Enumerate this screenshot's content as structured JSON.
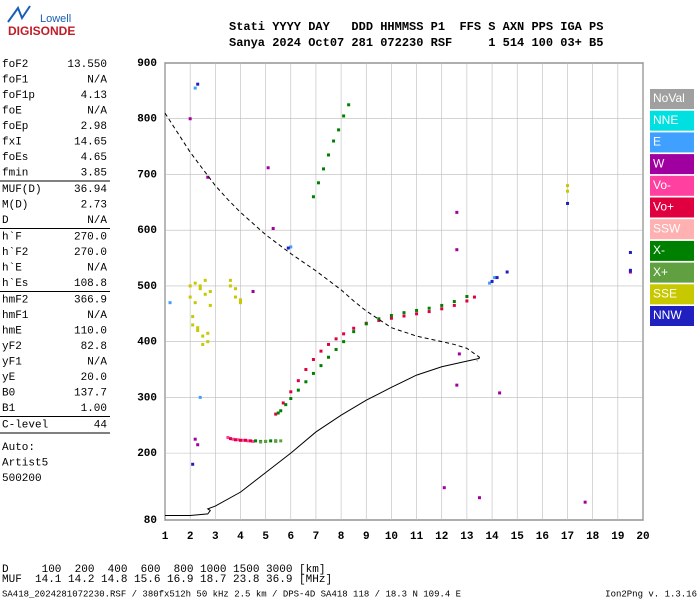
{
  "logo": {
    "brand": "Lowell",
    "product": "DIGISONDE"
  },
  "header": {
    "labels": "Stati YYYY DAY   DDD HHMMSS P1  FFS S AXN PPS IGA PS",
    "values": "Sanya 2024 Oct07 281 072230 RSF     1 514 100 03+ B5"
  },
  "params": [
    [
      [
        "foF2",
        "13.550"
      ],
      [
        "foF1",
        "N/A"
      ],
      [
        "foF1p",
        "4.13"
      ],
      [
        "foE",
        "N/A"
      ],
      [
        "foEp",
        "2.98"
      ],
      [
        "fxI",
        "14.65"
      ],
      [
        "foEs",
        "4.65"
      ],
      [
        "fmin",
        "3.85"
      ]
    ],
    [
      [
        "MUF(D)",
        "36.94"
      ],
      [
        "M(D)",
        "2.73"
      ],
      [
        "D",
        "N/A"
      ]
    ],
    [
      [
        "h`F",
        "270.0"
      ],
      [
        "h`F2",
        "270.0"
      ],
      [
        "h`E",
        "N/A"
      ],
      [
        "h`Es",
        "108.8"
      ]
    ],
    [
      [
        "hmF2",
        "366.9"
      ],
      [
        "hmF1",
        "N/A"
      ],
      [
        "hmE",
        "110.0"
      ],
      [
        "yF2",
        "82.8"
      ],
      [
        "yF1",
        "N/A"
      ],
      [
        "yE",
        "20.0"
      ],
      [
        "B0",
        "137.7"
      ],
      [
        "B1",
        "1.00"
      ]
    ],
    [
      [
        "C-level",
        "44"
      ]
    ]
  ],
  "auto": [
    "Auto:",
    "Artist5",
    "500200"
  ],
  "muf_table": [
    "D     100  200  400  600  800 1000 1500 3000 [km]",
    "MUF  14.1 14.2 14.8 15.6 16.9 18.7 23.8 36.9 [MHz]"
  ],
  "footer": {
    "file": "SA418_2024281072230.RSF / 380fx512h 50 kHz 2.5 km / DPS-4D SA418 118 / 18.3 N 109.4 E",
    "version": "Ion2Png v. 1.3.16"
  },
  "chart_data": {
    "type": "scatter",
    "xlim": [
      1,
      20
    ],
    "ylim": [
      80,
      900
    ],
    "xticks": [
      1,
      2,
      3,
      4,
      5,
      6,
      7,
      8,
      9,
      10,
      11,
      12,
      13,
      14,
      15,
      16,
      17,
      18,
      19,
      20
    ],
    "yticks": [
      80,
      200,
      300,
      400,
      500,
      600,
      700,
      800,
      900
    ],
    "grid": true,
    "series": [
      {
        "name": "NoVal",
        "color": "#a0a0a0",
        "x": [],
        "values": []
      },
      {
        "name": "NNE",
        "color": "#00e0e0",
        "x": [],
        "values": []
      },
      {
        "name": "E",
        "color": "#40a0ff",
        "x": [
          2.2,
          2.4,
          6.0,
          13.9,
          14.1,
          1.2
        ],
        "values": [
          855,
          300,
          570,
          505,
          515,
          470
        ]
      },
      {
        "name": "W",
        "color": "#a000a0",
        "x": [
          2.0,
          2.3,
          2.7,
          5.1,
          5.3,
          12.6,
          12.6,
          12.7,
          12.6,
          14.3,
          12.1,
          13.5,
          17.7,
          19.5,
          2.2,
          4.5
        ],
        "values": [
          800,
          215,
          695,
          712,
          603,
          632,
          565,
          378,
          322,
          308,
          138,
          120,
          112,
          525,
          225,
          490
        ]
      },
      {
        "name": "Vo-",
        "color": "#ff40a0",
        "x": [
          3.5,
          3.7,
          3.9,
          4.1,
          4.3,
          4.5
        ],
        "values": [
          228,
          225,
          224,
          223,
          222,
          221
        ]
      },
      {
        "name": "Vo+",
        "color": "#e00040",
        "x": [
          3.6,
          3.8,
          4.0,
          4.2,
          4.4,
          5.4,
          5.7,
          6.0,
          6.3,
          6.6,
          6.9,
          7.2,
          7.5,
          7.8,
          8.1,
          8.5,
          9.0,
          9.5,
          10.0,
          10.5,
          11.0,
          11.5,
          12.0,
          12.5,
          13.0,
          13.3
        ],
        "values": [
          226,
          224,
          223,
          223,
          222,
          270,
          290,
          310,
          330,
          350,
          368,
          383,
          395,
          405,
          414,
          424,
          433,
          438,
          442,
          446,
          450,
          454,
          459,
          465,
          473,
          480
        ]
      },
      {
        "name": "SSW",
        "color": "#ffb0b0",
        "x": [],
        "values": []
      },
      {
        "name": "X-",
        "color": "#008000",
        "x": [
          4.6,
          4.8,
          5.0,
          5.2,
          5.4,
          5.5,
          5.6,
          5.8,
          6.0,
          6.3,
          6.6,
          6.9,
          7.2,
          7.5,
          7.8,
          8.1,
          8.5,
          9.0,
          9.5,
          10.0,
          10.5,
          11.0,
          11.5,
          12.0,
          12.5,
          13.0,
          6.9,
          7.1,
          7.3,
          7.5,
          7.7,
          7.9,
          8.1,
          8.3
        ],
        "values": [
          222,
          221,
          221,
          222,
          222,
          272,
          276,
          287,
          298,
          313,
          328,
          343,
          357,
          372,
          386,
          400,
          418,
          432,
          441,
          447,
          452,
          456,
          460,
          465,
          472,
          481,
          660,
          685,
          710,
          735,
          760,
          780,
          805,
          825
        ]
      },
      {
        "name": "X+",
        "color": "#60a040",
        "x": [
          4.8,
          5.0,
          5.4,
          5.6
        ],
        "values": [
          220,
          221,
          221,
          222
        ]
      },
      {
        "name": "SSE",
        "color": "#c8c800",
        "x": [
          2.0,
          2.2,
          2.4,
          2.6,
          2.8,
          2.0,
          2.2,
          2.4,
          2.6,
          2.8,
          2.1,
          2.3,
          2.5,
          2.7,
          2.1,
          2.3,
          2.5,
          2.7,
          3.6,
          3.8,
          4.0,
          3.6,
          3.8,
          4.0,
          17.0,
          17.0
        ],
        "values": [
          500,
          505,
          495,
          510,
          490,
          480,
          470,
          500,
          485,
          465,
          430,
          420,
          410,
          400,
          445,
          425,
          395,
          415,
          510,
          495,
          475,
          500,
          480,
          470,
          680,
          670
        ]
      },
      {
        "name": "NNW",
        "color": "#2020c0",
        "x": [
          2.3,
          14.0,
          14.2,
          14.6,
          17.0,
          19.5,
          19.5,
          5.9,
          2.1
        ],
        "values": [
          862,
          508,
          515,
          525,
          648,
          528,
          560,
          568,
          180
        ]
      }
    ],
    "curves": [
      {
        "style": "dashed",
        "color": "#000000",
        "x": [
          1.0,
          1.5,
          2,
          2.5,
          3,
          3.5,
          4,
          5,
          6,
          7,
          8,
          8.5,
          9,
          10,
          11,
          12,
          12.5,
          13,
          13.5,
          13.4
        ],
        "values": [
          810,
          775,
          740,
          710,
          680,
          655,
          632,
          592,
          558,
          527,
          493,
          473,
          455,
          425,
          410,
          400,
          395,
          388,
          372,
          365
        ]
      },
      {
        "style": "solid",
        "color": "#000000",
        "x": [
          1.0,
          2.0,
          2.7,
          2.8,
          2.7,
          3.0,
          4,
          5,
          6,
          7,
          8,
          9,
          10,
          11,
          12,
          13,
          13.5
        ],
        "values": [
          88,
          88,
          91,
          97,
          100,
          105,
          130,
          165,
          200,
          238,
          268,
          295,
          318,
          340,
          355,
          365,
          370
        ]
      }
    ]
  }
}
